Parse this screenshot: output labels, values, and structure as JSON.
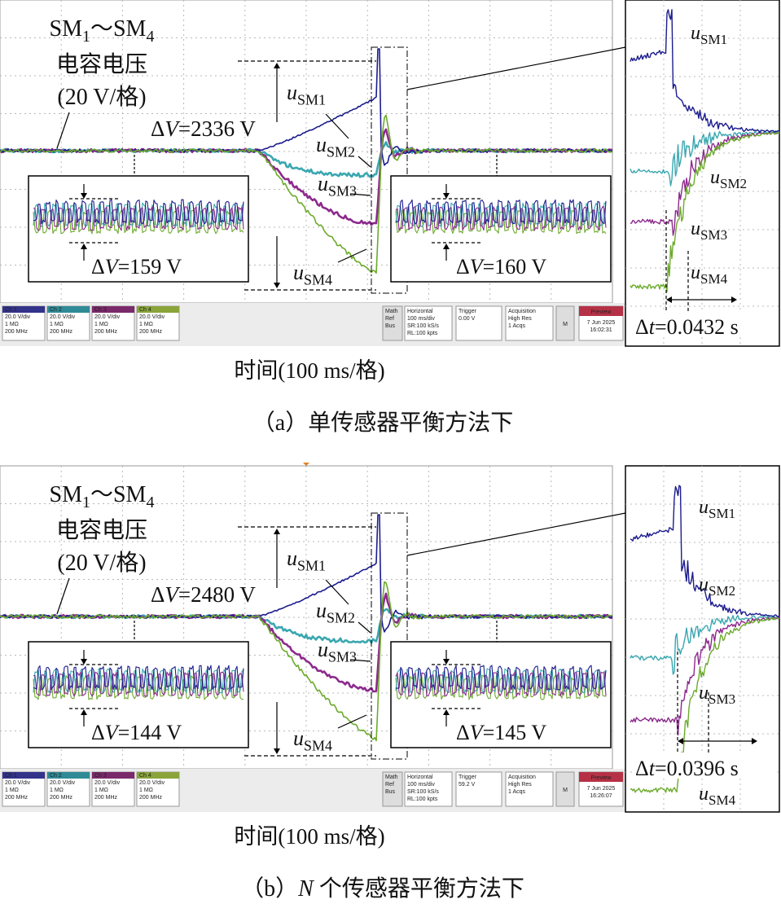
{
  "panels": [
    {
      "scope": {
        "heading": [
          "SM",
          "1",
          "～SM",
          "4"
        ],
        "quantity": "电容电压",
        "scale": "(20 V/格)",
        "delta_v": {
          "symbol": "Δ",
          "var": "V",
          "text": "=2336 V"
        },
        "curves": [
          {
            "var": "u",
            "sub": "SM1"
          },
          {
            "var": "u",
            "sub": "SM2"
          },
          {
            "var": "u",
            "sub": "SM3"
          },
          {
            "var": "u",
            "sub": "SM4"
          }
        ],
        "inset_left": {
          "symbol": "Δ",
          "var": "V",
          "text": "=159 V"
        },
        "inset_right": {
          "symbol": "Δ",
          "var": "V",
          "text": "=160 V"
        },
        "status": {
          "channels": [
            [
              "Ch 1",
              "20.0 V/div",
              "1 MΩ",
              "200 MHz"
            ],
            [
              "Ch 2",
              "20.0 V/div",
              "1 MΩ",
              "200 MHz"
            ],
            [
              "Ch 3",
              "20.0 V/div",
              "1 MΩ",
              "200 MHz"
            ],
            [
              "Ch 4",
              "20.0 V/div",
              "1 MΩ",
              "200 MHz"
            ]
          ],
          "math": [
            "Math",
            "Ref",
            "Bus"
          ],
          "horizontal": [
            "Horizontal",
            "100 ms/div",
            "SR:100 kS/s",
            "RL:100 kpts"
          ],
          "trigger": [
            "Trigger",
            "0.00 V"
          ],
          "acquisition": [
            "Acquisition",
            "High Res",
            "1 Acqs"
          ],
          "button": "M",
          "preview": "Preview",
          "timestamp": [
            "7 Jun 2025",
            "16:02:31"
          ]
        }
      },
      "zoom": {
        "curves": [
          {
            "var": "u",
            "sub": "SM1"
          },
          {
            "var": "u",
            "sub": "SM2"
          },
          {
            "var": "u",
            "sub": "SM3"
          },
          {
            "var": "u",
            "sub": "SM4"
          }
        ],
        "delta_t": {
          "symbol": "Δ",
          "var": "t",
          "text": "=0.0432 s"
        }
      },
      "time_axis": "时间(100 ms/格)",
      "caption": {
        "label": "（a）",
        "text": "单传感器平衡方法下"
      }
    },
    {
      "scope": {
        "heading": [
          "SM",
          "1",
          "～SM",
          "4"
        ],
        "quantity": "电容电压",
        "scale": "(20 V/格)",
        "delta_v": {
          "symbol": "Δ",
          "var": "V",
          "text": "=2480 V"
        },
        "curves": [
          {
            "var": "u",
            "sub": "SM1"
          },
          {
            "var": "u",
            "sub": "SM2"
          },
          {
            "var": "u",
            "sub": "SM3"
          },
          {
            "var": "u",
            "sub": "SM4"
          }
        ],
        "inset_left": {
          "symbol": "Δ",
          "var": "V",
          "text": "=144 V"
        },
        "inset_right": {
          "symbol": "Δ",
          "var": "V",
          "text": "=145 V"
        },
        "status": {
          "channels": [
            [
              "Ch 1",
              "20.0 V/div",
              "1 MΩ",
              "200 MHz"
            ],
            [
              "Ch 2",
              "20.0 V/div",
              "1 MΩ",
              "200 MHz"
            ],
            [
              "Ch 3",
              "20.0 V/div",
              "1 MΩ",
              "200 MHz"
            ],
            [
              "Ch 4",
              "20.0 V/div",
              "1 MΩ",
              "200 MHz"
            ]
          ],
          "math": [
            "Math",
            "Ref",
            "Bus"
          ],
          "horizontal": [
            "Horizontal",
            "100 ms/div",
            "SR:100 kS/s",
            "RL:100 kpts"
          ],
          "trigger": [
            "Trigger",
            "59.2 V"
          ],
          "acquisition": [
            "Acquisition",
            "High Res",
            "1 Acqs"
          ],
          "button": "M",
          "preview": "Preview",
          "timestamp": [
            "7 Jun 2025",
            "16:26:07"
          ]
        }
      },
      "zoom": {
        "curves": [
          {
            "var": "u",
            "sub": "SM1"
          },
          {
            "var": "u",
            "sub": "SM2"
          },
          {
            "var": "u",
            "sub": "SM3"
          },
          {
            "var": "u",
            "sub": "SM4"
          }
        ],
        "delta_t": {
          "symbol": "Δ",
          "var": "t",
          "text": "=0.0396 s"
        }
      },
      "time_axis": "时间(100 ms/格)",
      "caption": {
        "label": "（b）",
        "var": "N",
        "text": " 个传感器平衡方法下"
      }
    }
  ]
}
